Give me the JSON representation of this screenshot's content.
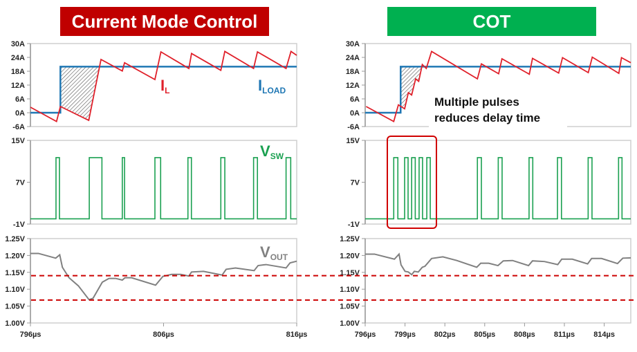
{
  "headers": {
    "left": {
      "text": "Current Mode Control",
      "color": "#C00000"
    },
    "right": {
      "text": "COT",
      "color": "#00B050"
    }
  },
  "annotation": {
    "line1": "Multiple pulses",
    "line2": "reduces delay time",
    "box_color": "#D00000"
  },
  "colors": {
    "il": "#E0202A",
    "iload": "#1F77B4",
    "vsw": "#1AA050",
    "vout": "#808080",
    "limits": "#CC0000"
  },
  "labels": {
    "il": {
      "main": "I",
      "sub": "L"
    },
    "iload": {
      "main": "I",
      "sub": "LOAD"
    },
    "vsw": {
      "main": "V",
      "sub": "SW"
    },
    "vout": {
      "main": "V",
      "sub": "OUT"
    }
  },
  "chart_data": [
    {
      "type": "line",
      "title": "Current Mode Control",
      "xlim": [
        796,
        816
      ],
      "x_ticks": [
        "796µs",
        "806µs",
        "816µs"
      ],
      "x_tick_values": [
        796,
        806,
        816
      ],
      "current": {
        "ylim": [
          -6,
          30
        ],
        "y_ticks": [
          "30A",
          "24A",
          "18A",
          "12A",
          "6A",
          "0A",
          "-6A"
        ],
        "y_tick_values": [
          30,
          24,
          18,
          12,
          6,
          0,
          -6
        ],
        "il": {
          "name": "IL",
          "t": [
            796,
            797.96,
            798.25,
            800.38,
            801.3,
            802.9,
            803.07,
            805.35,
            805.8,
            807.9,
            808.1,
            810.3,
            810.6,
            812.76,
            813.05,
            815.2,
            815.57,
            816
          ],
          "a": [
            2.4,
            -3.8,
            2.7,
            -3.3,
            23.1,
            18.1,
            21.7,
            14.4,
            26.4,
            19.2,
            25.7,
            18.4,
            26.6,
            19.2,
            26.4,
            19.2,
            26.6,
            24.9
          ]
        },
        "iload": {
          "name": "ILOAD",
          "before": 0,
          "after": 20,
          "step_time": 798.25
        },
        "delay_shading": {
          "from": 798.25,
          "to": 801.2
        }
      },
      "vsw": {
        "ylim": [
          -1,
          15
        ],
        "y_ticks": [
          "15V",
          "7V",
          "-1V"
        ],
        "y_tick_values": [
          15,
          7,
          -1
        ],
        "low": 0,
        "high": 11.7,
        "pulses": [
          [
            797.92,
            798.18
          ],
          [
            800.42,
            801.37
          ],
          [
            802.9,
            803.07
          ],
          [
            805.35,
            805.78
          ],
          [
            807.83,
            808.09
          ],
          [
            810.3,
            810.6
          ],
          [
            812.76,
            813.05
          ],
          [
            815.2,
            815.55
          ]
        ]
      },
      "vout": {
        "ylim": [
          1.0,
          1.25
        ],
        "y_ticks": [
          "1.25V",
          "1.20V",
          "1.15V",
          "1.10V",
          "1.05V",
          "1.00V"
        ],
        "y_tick_values": [
          1.25,
          1.2,
          1.15,
          1.1,
          1.05,
          1.0
        ],
        "t": [
          796,
          796.6,
          797.9,
          798.2,
          798.4,
          798.9,
          799.6,
          800.4,
          800.7,
          801.4,
          801.9,
          802.4,
          802.9,
          803.1,
          803.6,
          805.4,
          805.95,
          806.6,
          807.3,
          807.9,
          808.1,
          809.0,
          810.4,
          810.7,
          811.4,
          812.8,
          813.1,
          813.7,
          815.2,
          815.5,
          816
        ],
        "v": [
          1.206,
          1.206,
          1.192,
          1.202,
          1.165,
          1.134,
          1.11,
          1.069,
          1.073,
          1.121,
          1.132,
          1.132,
          1.127,
          1.134,
          1.134,
          1.112,
          1.138,
          1.144,
          1.144,
          1.139,
          1.151,
          1.153,
          1.142,
          1.159,
          1.163,
          1.155,
          1.17,
          1.173,
          1.163,
          1.178,
          1.183
        ]
      }
    },
    {
      "type": "line",
      "title": "COT",
      "xlim": [
        796,
        816
      ],
      "x_ticks": [
        "796µs",
        "799µs",
        "802µs",
        "805µs",
        "808µs",
        "811µs",
        "814µs"
      ],
      "x_tick_values": [
        796,
        799,
        802,
        805,
        808,
        811,
        814
      ],
      "current": {
        "ylim": [
          -6,
          30
        ],
        "y_ticks": [
          "30A",
          "24A",
          "18A",
          "12A",
          "6A",
          "0A",
          "-6A"
        ],
        "y_tick_values": [
          30,
          24,
          18,
          12,
          6,
          0,
          -6
        ],
        "il": {
          "name": "IL",
          "t": [
            796.07,
            798.15,
            798.5,
            798.97,
            799.25,
            799.5,
            799.8,
            800.03,
            800.3,
            800.6,
            801.0,
            804.45,
            804.75,
            806.05,
            806.3,
            808.36,
            808.6,
            810.57,
            810.86,
            812.8,
            813.1,
            815.1,
            815.3,
            816
          ],
          "a": [
            2.7,
            -3.8,
            3.4,
            1.7,
            8.7,
            7.7,
            14.7,
            13.6,
            20.9,
            19.2,
            26.6,
            14.7,
            21.2,
            16.9,
            23.4,
            16.7,
            23.6,
            17.2,
            23.9,
            17.4,
            24.1,
            17.1,
            23.9,
            21.7
          ]
        },
        "iload": {
          "name": "ILOAD",
          "before": 0,
          "after": 20,
          "step_time": 798.67
        },
        "delay_shading": {
          "from": 798.67,
          "to": 800.25
        }
      },
      "vsw": {
        "ylim": [
          -1,
          15
        ],
        "y_ticks": [
          "15V",
          "7V",
          "-1V"
        ],
        "y_tick_values": [
          15,
          7,
          -1
        ],
        "low": 0,
        "high": 11.7,
        "pulses": [
          [
            798.15,
            798.46
          ],
          [
            798.97,
            799.23
          ],
          [
            799.5,
            799.77
          ],
          [
            800.06,
            800.32
          ],
          [
            800.64,
            800.9
          ],
          [
            804.45,
            804.75
          ],
          [
            806.02,
            806.31
          ],
          [
            808.34,
            808.62
          ],
          [
            810.48,
            810.78
          ],
          [
            812.79,
            813.08
          ],
          [
            815.08,
            815.34
          ]
        ]
      },
      "vout": {
        "ylim": [
          1.0,
          1.25
        ],
        "y_ticks": [
          "1.25V",
          "1.20V",
          "1.15V",
          "1.10V",
          "1.05V",
          "1.00V"
        ],
        "y_tick_values": [
          1.25,
          1.2,
          1.15,
          1.1,
          1.05,
          1.0
        ],
        "t": [
          796,
          796.7,
          798.2,
          798.55,
          798.7,
          799.0,
          799.25,
          799.5,
          799.7,
          800.0,
          800.3,
          800.5,
          801.0,
          801.85,
          802.9,
          804.4,
          804.7,
          805.3,
          806.0,
          806.4,
          807.1,
          808.3,
          808.6,
          809.5,
          810.5,
          810.8,
          811.6,
          812.75,
          813.05,
          813.8,
          815.0,
          815.4,
          816
        ],
        "v": [
          1.204,
          1.204,
          1.189,
          1.204,
          1.172,
          1.153,
          1.151,
          1.143,
          1.153,
          1.151,
          1.165,
          1.168,
          1.191,
          1.196,
          1.185,
          1.165,
          1.177,
          1.177,
          1.17,
          1.184,
          1.185,
          1.17,
          1.184,
          1.182,
          1.173,
          1.189,
          1.189,
          1.175,
          1.191,
          1.191,
          1.176,
          1.192,
          1.193
        ]
      }
    }
  ],
  "vout_limits": [
    1.14,
    1.068
  ]
}
